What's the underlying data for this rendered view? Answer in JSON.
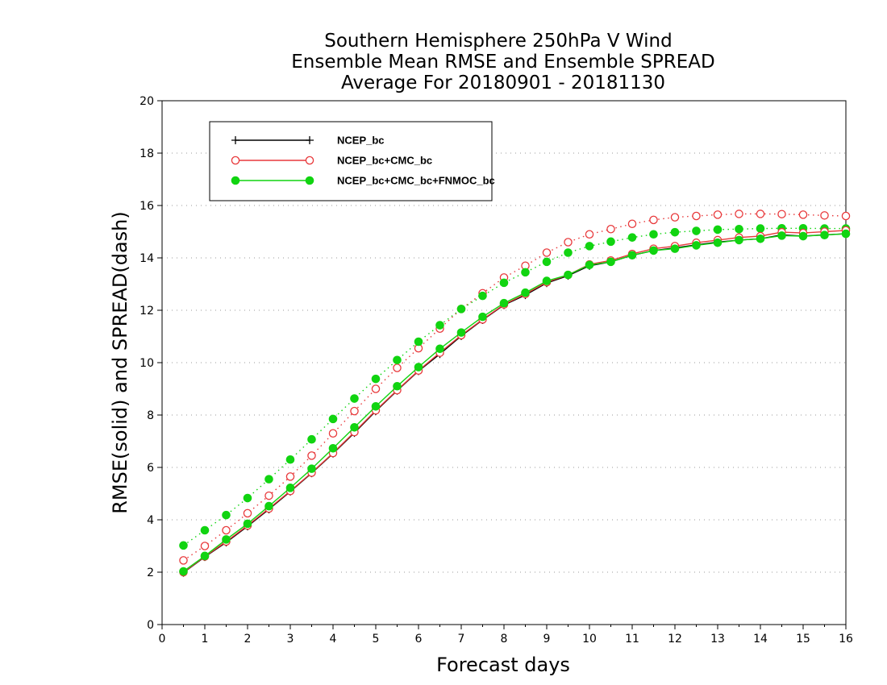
{
  "chart_data": {
    "type": "line",
    "title": [
      "Southern Hemisphere 250hPa V Wind",
      "Ensemble Mean RMSE and Ensemble SPREAD",
      "Average For 20180901 - 20181130"
    ],
    "xlabel": "Forecast days",
    "ylabel": "RMSE(solid) and SPREAD(dash)",
    "xlim": [
      0,
      16
    ],
    "ylim": [
      0,
      20
    ],
    "xticks": [
      0,
      1,
      2,
      3,
      4,
      5,
      6,
      7,
      8,
      9,
      10,
      11,
      12,
      13,
      14,
      15,
      16
    ],
    "yticks": [
      0,
      2,
      4,
      6,
      8,
      10,
      12,
      14,
      16,
      18,
      20
    ],
    "grid": true,
    "legend_position": "top-left",
    "x": [
      0.5,
      1,
      1.5,
      2,
      2.5,
      3,
      3.5,
      4,
      4.5,
      5,
      5.5,
      6,
      6.5,
      7,
      7.5,
      8,
      8.5,
      9,
      9.5,
      10,
      10.5,
      11,
      11.5,
      12,
      12.5,
      13,
      13.5,
      14,
      14.5,
      15,
      15.5,
      16
    ],
    "series": [
      {
        "name": "NCEP_bc",
        "color": "#000000",
        "marker": "plus",
        "rmse": [
          1.98,
          2.58,
          3.14,
          3.75,
          4.4,
          5.08,
          5.78,
          6.53,
          7.32,
          8.15,
          8.93,
          9.68,
          10.33,
          11.02,
          11.63,
          12.2,
          12.58,
          13.04,
          13.32,
          13.7,
          13.85,
          14.1,
          14.28,
          14.38,
          14.5,
          14.6,
          14.68,
          14.73,
          14.88,
          14.83,
          14.88,
          14.92
        ],
        "spread": []
      },
      {
        "name": "NCEP_bc+CMC_bc",
        "color": "#e8393b",
        "marker": "open-circle",
        "rmse": [
          2.0,
          2.6,
          3.17,
          3.78,
          4.43,
          5.1,
          5.8,
          6.55,
          7.35,
          8.18,
          8.95,
          9.7,
          10.38,
          11.05,
          11.65,
          12.22,
          12.62,
          13.07,
          13.35,
          13.75,
          13.9,
          14.15,
          14.35,
          14.45,
          14.58,
          14.68,
          14.78,
          14.83,
          14.98,
          14.95,
          15.0,
          15.05
        ],
        "spread": [
          2.45,
          3.0,
          3.6,
          4.25,
          4.92,
          5.65,
          6.45,
          7.3,
          8.15,
          9.0,
          9.8,
          10.55,
          11.3,
          12.05,
          12.65,
          13.25,
          13.7,
          14.2,
          14.6,
          14.9,
          15.1,
          15.3,
          15.45,
          15.55,
          15.6,
          15.65,
          15.68,
          15.68,
          15.67,
          15.65,
          15.62,
          15.6
        ]
      },
      {
        "name": "NCEP_bc+CMC_bc+FNMOC_bc",
        "color": "#11d411",
        "marker": "filled-circle",
        "rmse": [
          2.03,
          2.62,
          3.25,
          3.85,
          4.52,
          5.22,
          5.95,
          6.73,
          7.53,
          8.33,
          9.1,
          9.83,
          10.53,
          11.15,
          11.75,
          12.27,
          12.67,
          13.12,
          13.35,
          13.73,
          13.85,
          14.1,
          14.28,
          14.35,
          14.48,
          14.58,
          14.68,
          14.73,
          14.85,
          14.83,
          14.87,
          14.92
        ],
        "spread": [
          3.02,
          3.6,
          4.18,
          4.83,
          5.55,
          6.3,
          7.07,
          7.85,
          8.63,
          9.38,
          10.1,
          10.8,
          11.43,
          12.05,
          12.55,
          13.05,
          13.45,
          13.85,
          14.2,
          14.45,
          14.62,
          14.78,
          14.9,
          14.98,
          15.03,
          15.08,
          15.1,
          15.12,
          15.13,
          15.13,
          15.12,
          15.12
        ]
      }
    ]
  }
}
